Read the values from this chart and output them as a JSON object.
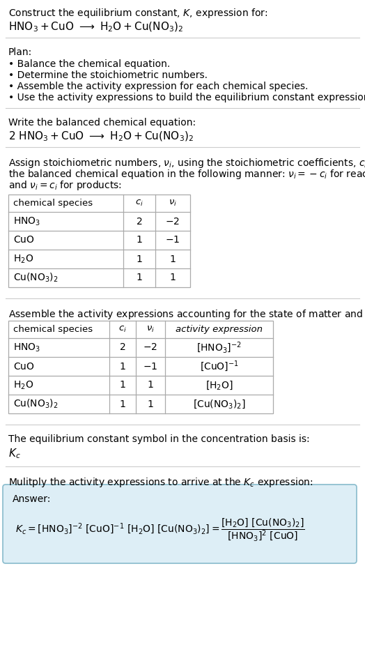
{
  "title_line1": "Construct the equilibrium constant, $K$, expression for:",
  "title_line2": "$\\mathrm{HNO_3 + CuO\\ \\longrightarrow\\ H_2O + Cu(NO_3)_2}$",
  "plan_header": "Plan:",
  "plan_items": [
    "• Balance the chemical equation.",
    "• Determine the stoichiometric numbers.",
    "• Assemble the activity expression for each chemical species.",
    "• Use the activity expressions to build the equilibrium constant expression."
  ],
  "balanced_header": "Write the balanced chemical equation:",
  "balanced_eq": "$\\mathrm{2\\ HNO_3 + CuO\\ \\longrightarrow\\ H_2O + Cu(NO_3)_2}$",
  "stoich_intro_lines": [
    "Assign stoichiometric numbers, $\\nu_i$, using the stoichiometric coefficients, $c_i$, from",
    "the balanced chemical equation in the following manner: $\\nu_i = -c_i$ for reactants",
    "and $\\nu_i = c_i$ for products:"
  ],
  "table1_headers": [
    "chemical species",
    "$c_i$",
    "$\\nu_i$"
  ],
  "table1_rows": [
    [
      "$\\mathrm{HNO_3}$",
      "2",
      "$-2$"
    ],
    [
      "$\\mathrm{CuO}$",
      "1",
      "$-1$"
    ],
    [
      "$\\mathrm{H_2O}$",
      "1",
      "$1$"
    ],
    [
      "$\\mathrm{Cu(NO_3)_2}$",
      "1",
      "$1$"
    ]
  ],
  "activity_intro": "Assemble the activity expressions accounting for the state of matter and $\\nu_i$:",
  "table2_headers": [
    "chemical species",
    "$c_i$",
    "$\\nu_i$",
    "activity expression"
  ],
  "table2_rows": [
    [
      "$\\mathrm{HNO_3}$",
      "2",
      "$-2$",
      "$[\\mathrm{HNO_3}]^{-2}$"
    ],
    [
      "$\\mathrm{CuO}$",
      "1",
      "$-1$",
      "$[\\mathrm{CuO}]^{-1}$"
    ],
    [
      "$\\mathrm{H_2O}$",
      "1",
      "$1$",
      "$[\\mathrm{H_2O}]$"
    ],
    [
      "$\\mathrm{Cu(NO_3)_2}$",
      "1",
      "$1$",
      "$[\\mathrm{Cu(NO_3)_2}]$"
    ]
  ],
  "kc_symbol_text": "The equilibrium constant symbol in the concentration basis is:",
  "kc_symbol": "$K_c$",
  "multiply_text": "Mulitply the activity expressions to arrive at the $K_c$ expression:",
  "answer_label": "Answer:",
  "answer_eq": "$K_c = [\\mathrm{HNO_3}]^{-2}\\ [\\mathrm{CuO}]^{-1}\\ [\\mathrm{H_2O}]\\ [\\mathrm{Cu(NO_3)_2}] = \\dfrac{[\\mathrm{H_2O}]\\ [\\mathrm{Cu(NO_3)_2}]}{[\\mathrm{HNO_3}]^2\\ [\\mathrm{CuO}]}$",
  "bg_color": "#ffffff",
  "answer_box_facecolor": "#ddeef6",
  "answer_box_edgecolor": "#88bbcc",
  "table_border_color": "#aaaaaa",
  "text_color": "#000000",
  "sep_color": "#cccccc"
}
